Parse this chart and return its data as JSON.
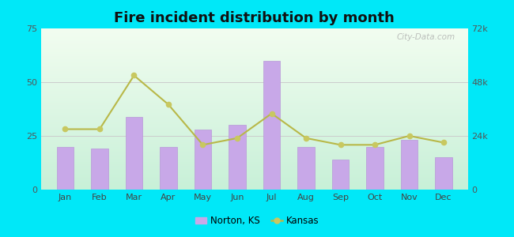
{
  "title": "Fire incident distribution by month",
  "months": [
    "Jan",
    "Feb",
    "Mar",
    "Apr",
    "May",
    "Jun",
    "Jul",
    "Aug",
    "Sep",
    "Oct",
    "Nov",
    "Dec"
  ],
  "norton_values": [
    20,
    19,
    34,
    20,
    28,
    30,
    60,
    20,
    14,
    20,
    23,
    15
  ],
  "kansas_values": [
    27000,
    27000,
    51000,
    38000,
    20000,
    23000,
    34000,
    23000,
    20000,
    20000,
    24000,
    21000
  ],
  "bar_color": "#c8a8e8",
  "bar_edge_color": "#b898d8",
  "line_color": "#b8b848",
  "line_marker_color": "#c8c860",
  "background_outer": "#00e8f8",
  "bg_color_top": "#f2fdf0",
  "bg_color_bottom": "#c8f0d8",
  "title_fontsize": 13,
  "ylim_left": [
    0,
    75
  ],
  "ylim_right": [
    0,
    72000
  ],
  "yticks_left": [
    0,
    25,
    50,
    75
  ],
  "yticks_right": [
    0,
    24000,
    48000,
    72000
  ],
  "ytick_right_labels": [
    "0",
    "24k",
    "48k",
    "72k"
  ],
  "legend_norton": "Norton, KS",
  "legend_kansas": "Kansas",
  "watermark": "City-Data.com"
}
